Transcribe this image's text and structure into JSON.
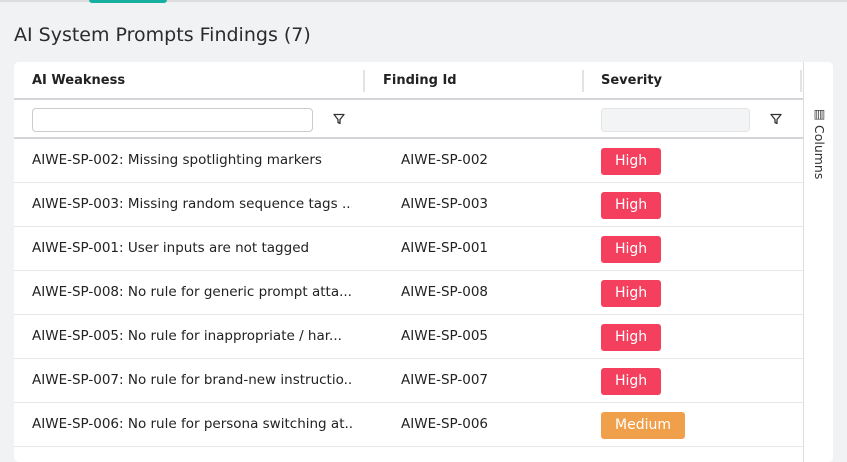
{
  "page": {
    "title": "AI System Prompts Findings (7)"
  },
  "table": {
    "columns": [
      "AI Weakness",
      "Finding Id",
      "Severity"
    ],
    "filters": {
      "ai_weakness": "",
      "severity": ""
    },
    "rows": [
      {
        "weakness": "AIWE-SP-002: Missing spotlighting markers",
        "id": "AIWE-SP-002",
        "severity": "High"
      },
      {
        "weakness": "AIWE-SP-003: Missing random sequence tags ...",
        "id": "AIWE-SP-003",
        "severity": "High"
      },
      {
        "weakness": "AIWE-SP-001: User inputs are not tagged",
        "id": "AIWE-SP-001",
        "severity": "High"
      },
      {
        "weakness": "AIWE-SP-008: No rule for generic prompt atta...",
        "id": "AIWE-SP-008",
        "severity": "High"
      },
      {
        "weakness": "AIWE-SP-005: No rule for inappropriate / har...",
        "id": "AIWE-SP-005",
        "severity": "High"
      },
      {
        "weakness": "AIWE-SP-007: No rule for brand-new instructio...",
        "id": "AIWE-SP-007",
        "severity": "High"
      },
      {
        "weakness": "AIWE-SP-006: No rule for persona switching at...",
        "id": "AIWE-SP-006",
        "severity": "Medium"
      }
    ]
  },
  "side_panel": {
    "columns_label": "Columns",
    "icon": "columns-icon"
  },
  "colors": {
    "High": "#f43f5e",
    "Medium": "#f0a04b",
    "accent": "#17b0a0"
  }
}
